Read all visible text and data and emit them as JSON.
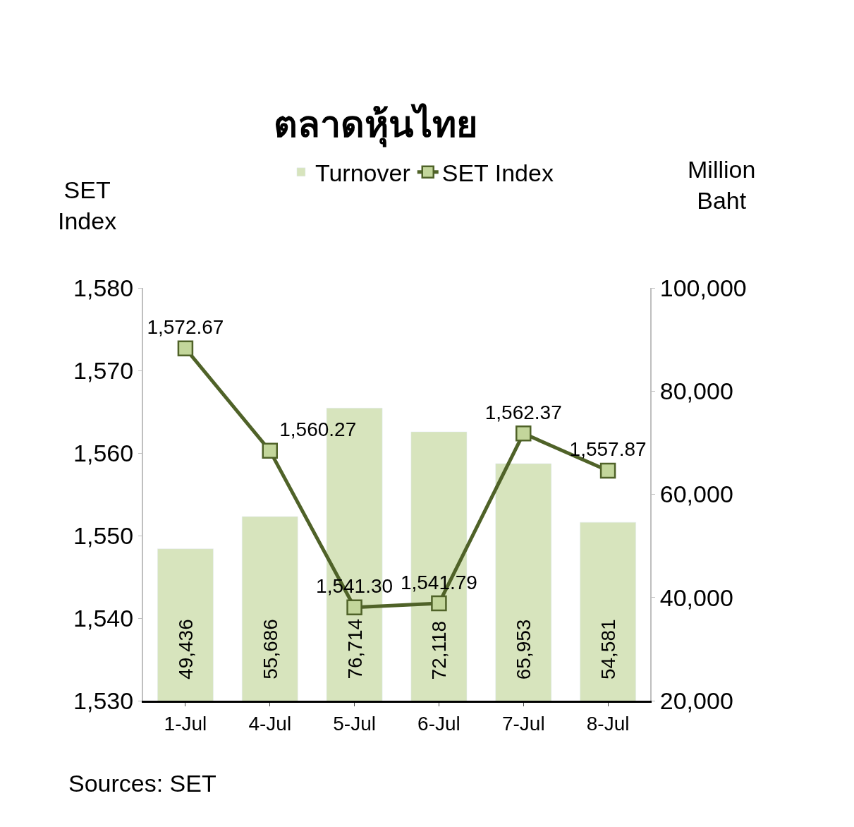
{
  "chart_data": {
    "type": "bar",
    "title": "ตลาดหุ้นไทย",
    "categories": [
      "1-Jul",
      "4-Jul",
      "5-Jul",
      "6-Jul",
      "7-Jul",
      "8-Jul"
    ],
    "series": [
      {
        "name": "Turnover",
        "axis": "y2",
        "color": "#d7e4bd",
        "values": [
          49436,
          55686,
          76714,
          72118,
          65953,
          54581
        ],
        "value_labels": [
          "49,436",
          "55,686",
          "76,714",
          "72,118",
          "65,953",
          "54,581"
        ]
      },
      {
        "name": "SET Index",
        "type": "line",
        "color": "#4f6228",
        "values": [
          1572.67,
          1560.27,
          1541.3,
          1541.79,
          1562.37,
          1557.87
        ],
        "value_labels": [
          "1,572.67",
          "1,560.27",
          "1,541.30",
          "1,541.79",
          "1,562.37",
          "1,557.87"
        ]
      }
    ],
    "ylabel": "SET\nIndex",
    "y2label": "Million\nBaht",
    "ylim": [
      1530,
      1580
    ],
    "yticks": [
      {
        "value": 1530,
        "label": "1,530"
      },
      {
        "value": 1540,
        "label": "1,540"
      },
      {
        "value": 1550,
        "label": "1,550"
      },
      {
        "value": 1560,
        "label": "1,560"
      },
      {
        "value": 1570,
        "label": "1,570"
      },
      {
        "value": 1580,
        "label": "1,580"
      }
    ],
    "y2lim": [
      20000,
      100000
    ],
    "y2ticks": [
      {
        "value": 20000,
        "label": "20,000"
      },
      {
        "value": 40000,
        "label": "40,000"
      },
      {
        "value": 60000,
        "label": "60,000"
      },
      {
        "value": 80000,
        "label": "80,000"
      },
      {
        "value": 100000,
        "label": "100,000"
      }
    ],
    "marker": "square",
    "legend": "top",
    "annotations": [
      "Sources: SET"
    ]
  }
}
